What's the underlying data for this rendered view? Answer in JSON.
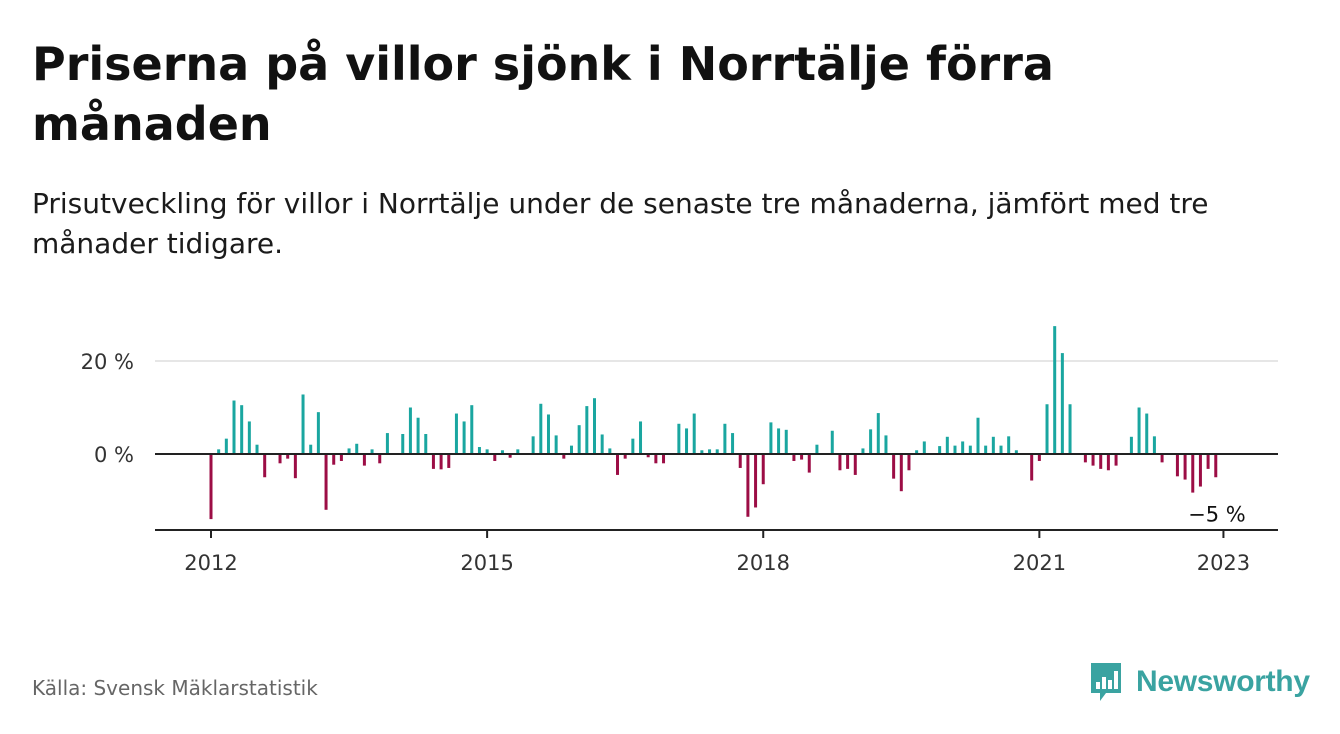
{
  "title": "Priserna på villor sjönk i Norrtälje förra månaden",
  "subtitle": "Prisutveckling för villor i Norrtälje under de senaste tre månaderna, jämfört med tre månader tidigare.",
  "source": "Källa: Svensk Mäklarstatistik",
  "brand": {
    "name": "Newsworthy",
    "icon": "newsworthy-logo-icon",
    "color": "#3aa3a1"
  },
  "colors": {
    "positive": "#1aa6a0",
    "negative": "#9c0d45",
    "axis": "#222222",
    "grid": "#dddddd"
  },
  "chart_data": {
    "type": "bar",
    "x_start": "2012-01",
    "x_unit": "month",
    "x_ticks": [
      {
        "value": "2012-01",
        "label": "2012"
      },
      {
        "value": "2015-01",
        "label": "2015"
      },
      {
        "value": "2018-01",
        "label": "2018"
      },
      {
        "value": "2021-01",
        "label": "2021"
      },
      {
        "value": "2023-01",
        "label": "2023"
      }
    ],
    "y_ticks": [
      {
        "value": 20,
        "label": "20 %"
      },
      {
        "value": 0,
        "label": "0 %"
      }
    ],
    "ylim": [
      -16,
      28
    ],
    "grid": true,
    "annotation": {
      "x": "2022-12",
      "label": "−5 %"
    },
    "values": [
      -14,
      1,
      3.3,
      11.5,
      10.5,
      7,
      2,
      -5,
      0,
      -2,
      -1,
      -5.2,
      12.8,
      2,
      9,
      -12,
      -2.3,
      -1.5,
      1.2,
      2.2,
      -2.5,
      1,
      -2,
      4.5,
      0,
      4.3,
      10,
      7.8,
      4.3,
      -3.2,
      -3.3,
      -3,
      8.7,
      7,
      10.5,
      1.5,
      1,
      -1.5,
      0.8,
      -0.8,
      1,
      0,
      3.8,
      10.8,
      8.5,
      4,
      -1,
      1.8,
      6.2,
      10.3,
      12,
      4.2,
      1.2,
      -4.5,
      -1,
      3.3,
      7,
      -0.7,
      -2,
      -2,
      0,
      6.5,
      5.5,
      8.7,
      0.8,
      1,
      1,
      6.5,
      4.5,
      -3,
      -13.5,
      -11.5,
      -6.5,
      6.8,
      5.5,
      5.2,
      -1.5,
      -1.2,
      -4,
      2,
      0,
      5,
      -3.5,
      -3.2,
      -4.5,
      1.2,
      5.3,
      8.8,
      4,
      -5.3,
      -8,
      -3.5,
      0.8,
      2.7,
      0,
      1.7,
      3.7,
      1.8,
      2.7,
      1.8,
      7.8,
      1.8,
      3.7,
      1.8,
      3.8,
      0.8,
      0,
      -5.7,
      -1.5,
      10.7,
      27.5,
      21.7,
      10.7,
      0,
      -1.8,
      -2.5,
      -3.2,
      -3.5,
      -2.5,
      0,
      3.7,
      10,
      8.7,
      3.8,
      -1.8,
      0,
      -4.8,
      -5.5,
      -8.3,
      -7,
      -3.2,
      -5
    ]
  }
}
